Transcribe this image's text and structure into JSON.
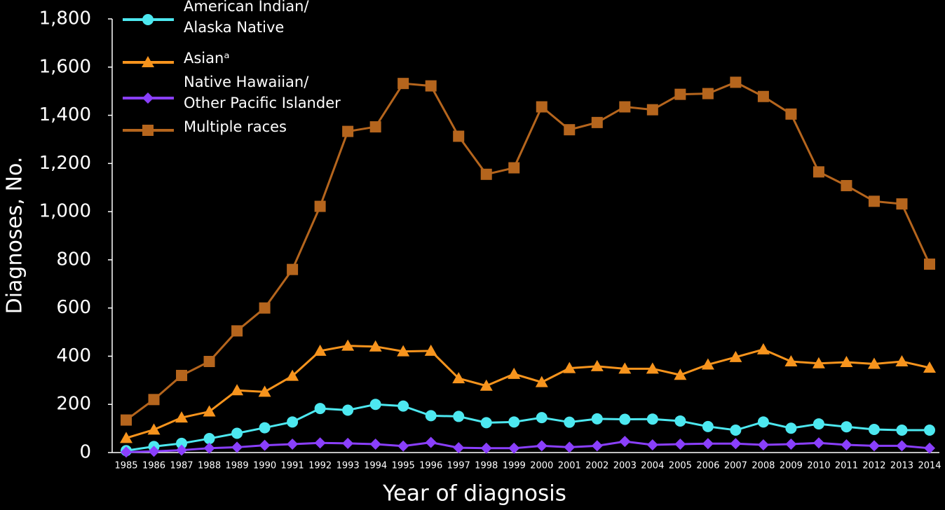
{
  "chart_data": {
    "type": "line",
    "x_label": "Year of diagnosis",
    "y_label": "Diagnoses, No.",
    "categories": [
      "1985",
      "1986",
      "1987",
      "1988",
      "1989",
      "1990",
      "1991",
      "1992",
      "1993",
      "1994",
      "1995",
      "1996",
      "1997",
      "1998",
      "1999",
      "2000",
      "2001",
      "2002",
      "2003",
      "2004",
      "2005",
      "2006",
      "2007",
      "2008",
      "2009",
      "2010",
      "2011",
      "2012",
      "2013",
      "2014"
    ],
    "ylim": [
      0,
      1800
    ],
    "yticks": [
      0,
      200,
      400,
      600,
      800,
      {
        "value": 1000,
        "label": "1,000"
      },
      {
        "value": 1200,
        "label": "1,200"
      },
      {
        "value": 1400,
        "label": "1,400"
      },
      {
        "value": 1600,
        "label": "1,600"
      },
      {
        "value": 1800,
        "label": "1,800"
      }
    ],
    "legend": "upper left",
    "series": [
      {
        "name": "American Indian/\nAlaska Native",
        "color": "#4de8f0",
        "marker": "circle",
        "values": [
          8,
          25,
          38,
          58,
          80,
          103,
          127,
          183,
          176,
          200,
          193,
          153,
          150,
          124,
          127,
          145,
          126,
          140,
          138,
          139,
          131,
          108,
          93,
          127,
          101,
          119,
          107,
          96,
          93,
          93
        ]
      },
      {
        "name": "Asianᵃ",
        "color": "#f7941d",
        "marker": "triangle",
        "values": [
          60,
          95,
          145,
          170,
          258,
          252,
          318,
          422,
          443,
          440,
          420,
          422,
          308,
          277,
          326,
          292,
          350,
          358,
          348,
          348,
          322,
          365,
          396,
          428,
          378,
          370,
          375,
          368,
          378,
          352
        ]
      },
      {
        "name": "Native Hawaiian/\nOther Pacific Islander",
        "color": "#8a3ffc",
        "marker": "diamond",
        "values": [
          2,
          5,
          10,
          18,
          22,
          30,
          35,
          40,
          38,
          35,
          27,
          42,
          20,
          18,
          18,
          28,
          22,
          28,
          46,
          32,
          35,
          37,
          37,
          32,
          35,
          40,
          32,
          28,
          28,
          18
        ]
      },
      {
        "name": "Multiple races",
        "color": "#b5651d",
        "marker": "square",
        "values": [
          135,
          220,
          320,
          378,
          505,
          600,
          760,
          1022,
          1333,
          1352,
          1532,
          1522,
          1313,
          1155,
          1182,
          1435,
          1340,
          1370,
          1435,
          1423,
          1487,
          1490,
          1537,
          1478,
          1405,
          1165,
          1108,
          1043,
          1032,
          782
        ]
      }
    ]
  }
}
